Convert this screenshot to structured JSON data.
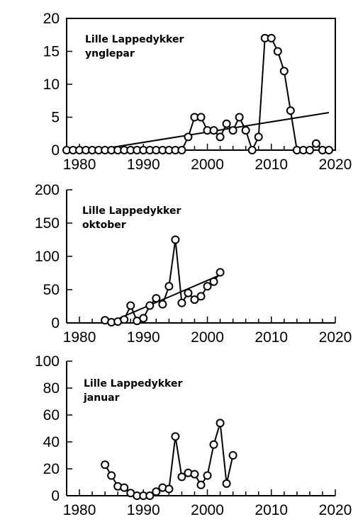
{
  "chart_data": [
    {
      "type": "line",
      "title": "Lille Lappedykker",
      "subtitle": "ynglepar",
      "xlabel": "",
      "ylabel": "",
      "xlim": [
        1978,
        2020
      ],
      "ylim": [
        0,
        20
      ],
      "x_ticks": [
        1980,
        1990,
        2000,
        2010,
        2020
      ],
      "y_ticks": [
        0,
        5,
        10,
        15,
        20
      ],
      "frame": "box",
      "grid": false,
      "legend": "none",
      "series": [
        {
          "x": [
            1978,
            1979,
            1980,
            1981,
            1982,
            1983,
            1984,
            1985,
            1986,
            1987,
            1988,
            1989,
            1990,
            1991,
            1992,
            1993,
            1994,
            1995,
            1996,
            1997,
            1998,
            1999,
            2000,
            2001,
            2002,
            2003,
            2004,
            2005,
            2006,
            2007,
            2008,
            2009,
            2010,
            2011,
            2012,
            2013,
            2014,
            2015,
            2016,
            2017,
            2018,
            2019
          ],
          "values": [
            0,
            0,
            0,
            0,
            0,
            0,
            0,
            0,
            0,
            0,
            0,
            0,
            0,
            0,
            0,
            0,
            0,
            0,
            0,
            2,
            5,
            5,
            3,
            3,
            2,
            4,
            3,
            5,
            3,
            0,
            2,
            17,
            17,
            15,
            12,
            6,
            0,
            0,
            0,
            1,
            0,
            0
          ]
        }
      ],
      "trend": {
        "x": [
          1985,
          2019
        ],
        "y": [
          0.4,
          5.7
        ]
      }
    },
    {
      "type": "line",
      "title": "Lille Lappedykker",
      "subtitle": "oktober",
      "xlabel": "",
      "ylabel": "",
      "xlim": [
        1978,
        2020
      ],
      "ylim": [
        0,
        200
      ],
      "x_ticks": [
        1980,
        1990,
        2000,
        2010,
        2020
      ],
      "y_ticks": [
        0,
        50,
        100,
        150,
        200
      ],
      "frame": "axes",
      "grid": false,
      "legend": "none",
      "series": [
        {
          "x": [
            1984,
            1985,
            1986,
            1987,
            1988,
            1989,
            1990,
            1991,
            1992,
            1993,
            1994,
            1995,
            1996,
            1997,
            1998,
            1999,
            2000,
            2001,
            2002
          ],
          "values": [
            4,
            1,
            2,
            5,
            26,
            3,
            7,
            26,
            37,
            28,
            55,
            125,
            30,
            45,
            35,
            40,
            55,
            62,
            76
          ]
        }
      ],
      "trend": {
        "x": [
          1985,
          2002
        ],
        "y": [
          2,
          72
        ]
      }
    },
    {
      "type": "line",
      "title": "Lille Lappedykker",
      "subtitle": "januar",
      "xlabel": "",
      "ylabel": "",
      "xlim": [
        1978,
        2020
      ],
      "ylim": [
        0,
        100
      ],
      "x_ticks": [
        1980,
        1990,
        2000,
        2010,
        2020
      ],
      "y_ticks": [
        0,
        20,
        40,
        60,
        80,
        100
      ],
      "frame": "axes",
      "grid": false,
      "legend": "none",
      "series": [
        {
          "x": [
            1984,
            1985,
            1986,
            1987,
            1988,
            1989,
            1990,
            1991,
            1992,
            1993,
            1994,
            1995,
            1996,
            1997,
            1998,
            1999,
            2000,
            2001,
            2002,
            2003,
            2004
          ],
          "values": [
            23,
            15,
            7,
            6,
            2,
            0,
            0,
            0,
            3,
            6,
            5,
            44,
            14,
            17,
            16,
            8,
            15,
            38,
            54,
            9,
            30
          ]
        }
      ],
      "trend": null
    }
  ]
}
